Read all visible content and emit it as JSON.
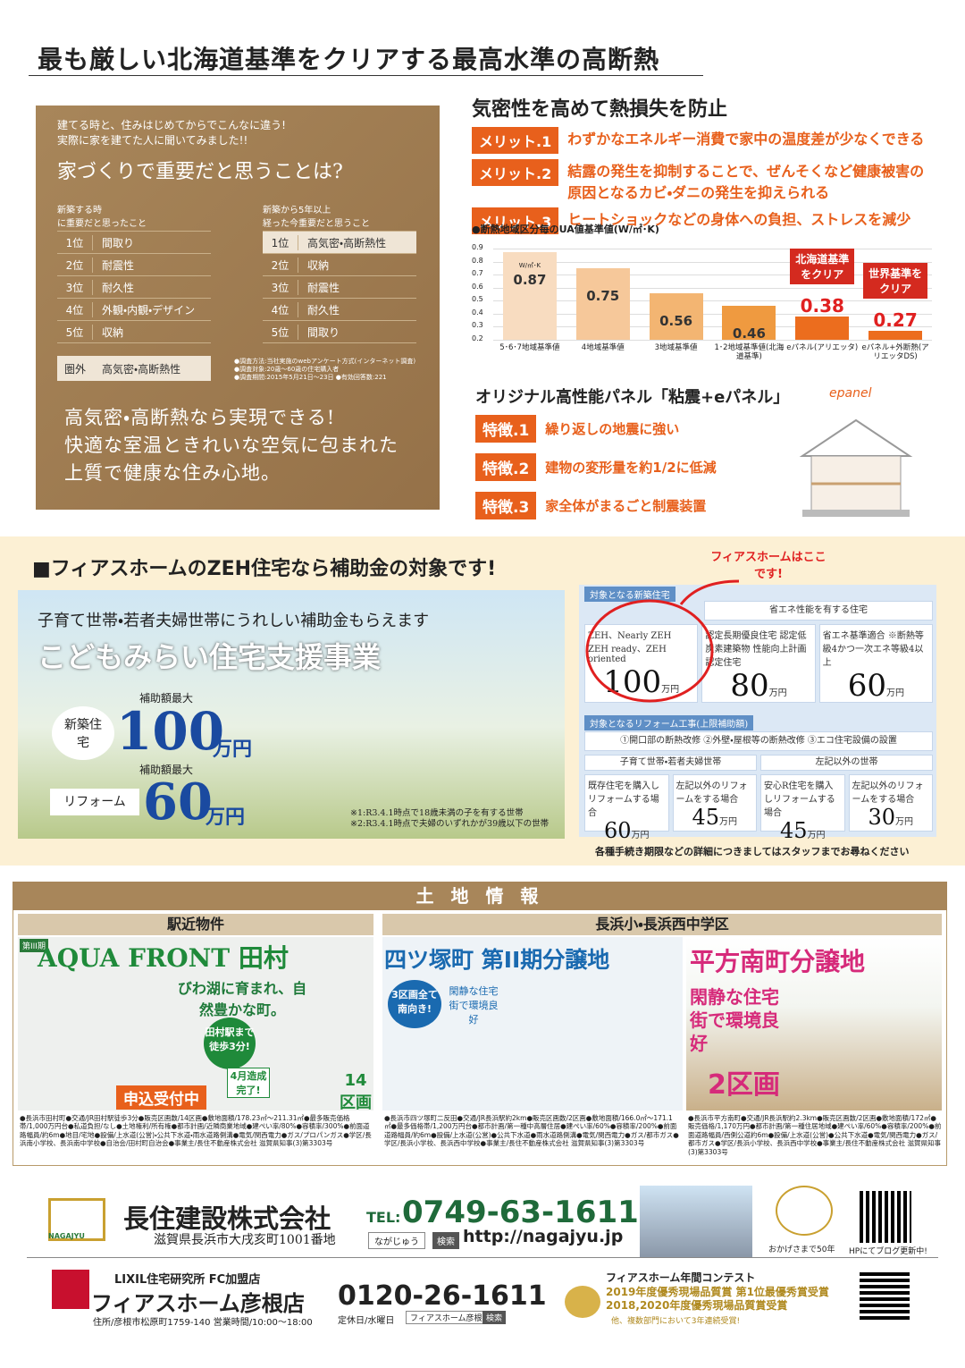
{
  "header": {
    "title": "最も厳しい北海道基準をクリアする最高水準の高断熱"
  },
  "survey": {
    "intro": [
      "建てる時と、住みはじめてからでこんなに違う!",
      "実際に家を建てた人に聞いてみました!!"
    ],
    "question": "家づくりで重要だと思うことは?",
    "new_build": {
      "heading": [
        "新築する時",
        "に重要だと思ったこと"
      ],
      "ranks": [
        [
          "1位",
          "間取り"
        ],
        [
          "2位",
          "耐震性"
        ],
        [
          "3位",
          "耐久性"
        ],
        [
          "4位",
          "外観・内観・デザイン"
        ],
        [
          "5位",
          "収納"
        ]
      ],
      "outside": [
        "圏外",
        "高気密・高断熱性"
      ]
    },
    "after5": {
      "heading": [
        "新築から5年以上",
        "経った今重要だと思うこと"
      ],
      "ranks": [
        [
          "1位",
          "高気密・高断熱性"
        ],
        [
          "2位",
          "収納"
        ],
        [
          "3位",
          "耐震性"
        ],
        [
          "4位",
          "耐久性"
        ],
        [
          "5位",
          "間取り"
        ]
      ]
    },
    "notes": [
      "●調査方法:当社実施のwebアンケート方式(インターネット調査)",
      "●調査対象:20歳〜60歳の住宅購入者",
      "●調査期間:2015年5月21日〜23日 ●有効回答数:221"
    ],
    "message": [
      "高気密・高断熱なら実現できる!",
      "快適な室温ときれいな空気に包まれた",
      "上質で健康な住み心地。"
    ]
  },
  "airtight": {
    "title": "気密性を高めて熱損失を防止",
    "merits": [
      [
        "メリット.1",
        "わずかなエネルギー消費で家中の温度差が少なくできる"
      ],
      [
        "メリット.2",
        "結露の発生を抑制することで、ぜんそくなど健康被害の原因となるカビ・ダニの発生を抑えられる"
      ],
      [
        "メリット.3",
        "ヒートショックなどの身体への負担、ストレスを減少"
      ]
    ]
  },
  "ua_chart": {
    "type": "bar",
    "title": "●断熱地域区分毎のUA値基準値(W/㎡･K)",
    "unit_note": "W/㎡･K",
    "categories": [
      "5･6･7地域基準値",
      "4地域基準値",
      "3地域基準値",
      "1･2地域基準値(北海道基準)",
      "eパネル(アリエッタ)",
      "eパネル+外断熱(アリエッタDS)"
    ],
    "values": [
      0.87,
      0.75,
      0.56,
      0.46,
      0.38,
      0.27
    ],
    "colors": [
      "#f8dcc0",
      "#f6c89a",
      "#f3b572",
      "#ef9a40",
      "#ec6d1e",
      "#ec6d1e"
    ],
    "annotations": [
      "北海道基準をクリア",
      "世界基準をクリア"
    ],
    "ylim": [
      0.2,
      0.9
    ],
    "yticks": [
      0.2,
      0.3,
      0.4,
      0.5,
      0.6,
      0.7,
      0.8,
      0.9
    ],
    "grid": true
  },
  "panel": {
    "title": "オリジナル高性能パネル「粘震+eパネル」",
    "logo": "epanel",
    "features": [
      [
        "特徴.1",
        "繰り返しの地震に強い"
      ],
      [
        "特徴.2",
        "建物の変形量を約1/2に低減"
      ],
      [
        "特徴.3",
        "家全体がまるごと制震装置"
      ]
    ]
  },
  "subsidy": {
    "title": "■フィアスホームのZEH住宅なら補助金の対象です!",
    "callout": "フィアスホームはここです!",
    "banner": {
      "lead": "子育て世帯・若者夫婦世帯にうれしい補助金もらえます",
      "name": "こどもみらい住宅支援事業",
      "new_label": "新築住宅",
      "new_max": "補助額最大",
      "new_amount": "100",
      "unit": "万円",
      "reform_label": "リフォーム",
      "reform_max": "補助額最大",
      "reform_amount": "60",
      "notes": [
        "※1:R3.4.1時点で18歳未満の子を有する世帯",
        "※2:R3.4.1時点で夫婦のいずれかが39歳以下の世帯"
      ]
    },
    "new_table": {
      "heading": "対象となる新築住宅",
      "row": "省エネ性能を有する住宅",
      "cells": [
        [
          "ZEH、Nearly ZEH ZEH ready、ZEH oriented",
          "100",
          "万円"
        ],
        [
          "認定長期優良住宅 認定低炭素建築物 性能向上計画認定住宅",
          "80",
          "万円"
        ],
        [
          "省エネ基準適合 ※断熱等級4かつ一次エネ等級4以上",
          "60",
          "万円"
        ]
      ]
    },
    "reform_table": {
      "heading": "対象となるリフォーム工事(上限補助額)",
      "row": "①開口部の断熱改修 ②外壁・屋根等の断熱改修 ③エコ住宅設備の設置",
      "groups": [
        "子育て世帯・若者夫婦世帯",
        "左記以外の世帯"
      ],
      "cells": [
        [
          "既存住宅を購入しリフォームする場合",
          "60",
          "万円"
        ],
        [
          "左記以外のリフォームをする場合",
          "45",
          "万円"
        ],
        [
          "安心R住宅を購入しリフォームする場合",
          "45",
          "万円"
        ],
        [
          "左記以外のリフォームをする場合",
          "30",
          "万円"
        ]
      ]
    },
    "footer": "各種手続き期限などの詳細につきましてはスタッフまでお尋ねください"
  },
  "land": {
    "title": "土 地 情 報",
    "left": {
      "heading": "駅近物件",
      "phase": "第III期",
      "name": "AQUA FRONT 田村",
      "catch": "びわ湖に育まれ、自然豊かな町。",
      "station": "田村駅まで徒歩3分!",
      "apply": "申込受付中",
      "done": "4月造成完了!",
      "lots": "14区画",
      "fine": "●長浜市田村町●交通/JR田村駅徒歩3分●販売区画数/14区画●敷地面積/178.23㎡〜211.31㎡●最多販売価格帯/1,000万円台●私道負担/なし●土地権利/所有権●都市計画/近隣商業地域●建ぺい率/80%●容積率/300%●前面道路幅員/約6m●地目/宅地●設備/上水道(公営)・公共下水道・雨水道路側溝●電気/関西電力●ガス/プロパンガス●学区/長浜南小学校、長浜南中学校●自治会/田村町自治会●事業主/長住不動産株式会社 滋賀県知事(3)第3303号"
    },
    "right": {
      "heading": "長浜小・長浜西中学区",
      "a": {
        "name": "四ツ塚町 第II期分譲地",
        "badge": "3区画全て南向き!",
        "note": "閑静な住宅街で環境良好",
        "fine": "●長浜市四ツ塚町二反田●交通/JR長浜駅約2km●販売区画数/2区画●敷地面積/166.0㎡〜171.1㎡●最多価格帯/1,200万円台●都市計画/第一種中高層住居●建ぺい率/60%●容積率/200%●前面道路幅員/約6m●設備/上水道(公営)●公共下水道●雨水道路側溝●電気/関西電力●ガス/都市ガス●学区/長浜小学校、長浜西中学校●事業主/長住不動産株式会社 滋賀県知事(3)第3303号"
      },
      "b": {
        "name": "平方南町分譲地",
        "note": "閑静な住宅街で環境良好",
        "lots": "2区画",
        "fine": "●長浜市平方南町●交通/JR長浜駅約2.3km●販売区画数/2区画●敷地面積/172㎡●販売価格/1,170万円●都市計画/第一種住居地域●建ぺい率/60%●容積率/200%●前面道路幅員/西側公道約6m●設備/上水道(公営)●公共下水道●電気/関西電力●ガス/都市ガス●学区/長浜小学校、長浜西中学校●事業主/長住不動産株式会社 滋賀県知事(3)第3303号"
      }
    }
  },
  "company": {
    "nagajyu": {
      "logo": "NAGAJYU",
      "name": "長住建設株式会社",
      "address": "滋賀県長浜市大戌亥町1001番地",
      "tel_label": "TEL:",
      "tel": "0749-63-1611",
      "search": "ながじゅう",
      "search_btn": "検索",
      "url": "http://nagajyu.jp",
      "anniv": "おかげさまで50年",
      "qr": "HPにてブログ更新中!"
    },
    "fiace": {
      "lead": "LIXIL住宅研究所 FC加盟店",
      "name": "フィアスホーム彦根店",
      "address": "住所/彦根市松原町1759-140 営業時間/10:00〜18:00",
      "tel": "0120-26-1611",
      "holiday": "定休日/水曜日",
      "search": "フィアスホーム彦根",
      "search_btn": "検索",
      "contest": "フィアスホーム年間コンテスト",
      "awards": [
        "2019年度優秀現場品質賞 第1位最優秀賞受賞",
        "2018,2020年度優秀現場品質賞受賞"
      ],
      "award_note": "他、複数部門において3年連続受賞!"
    }
  }
}
